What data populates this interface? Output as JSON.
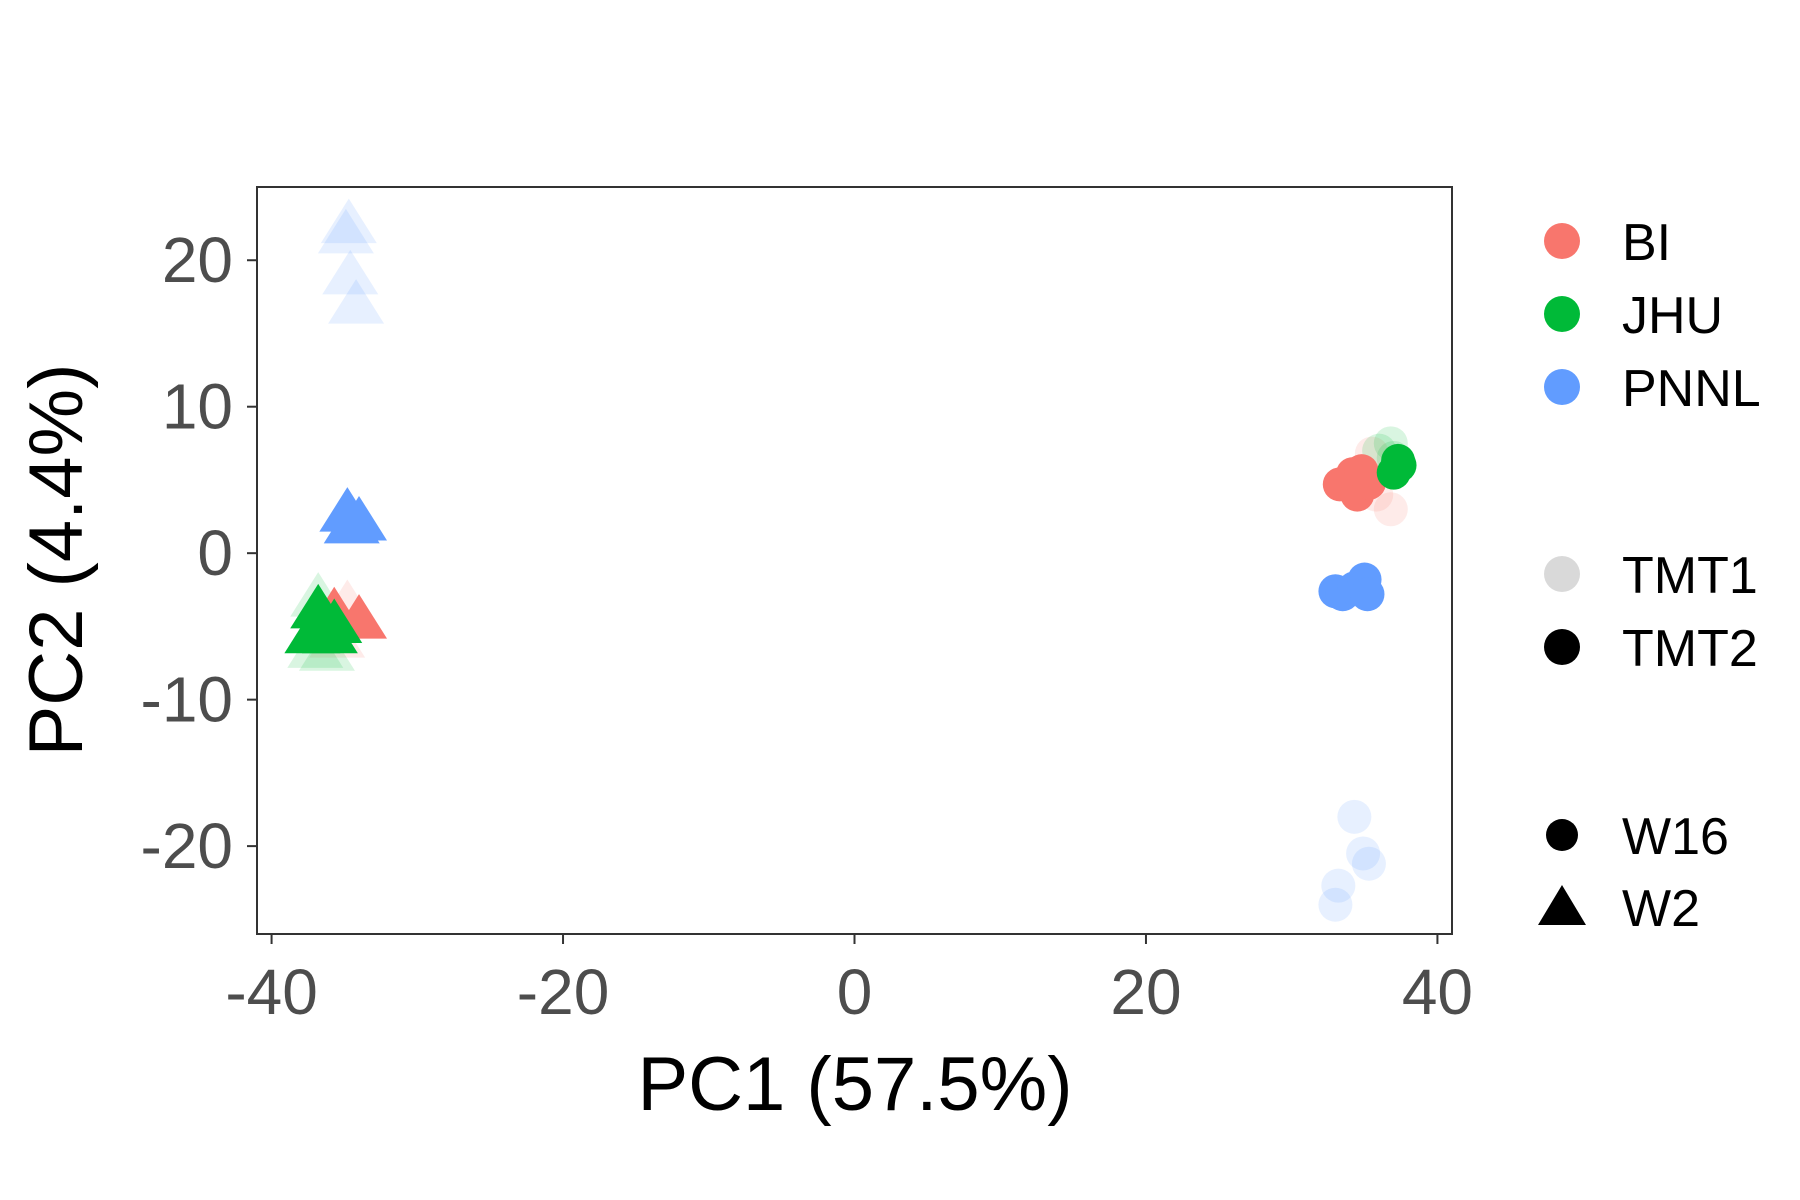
{
  "chart_data": {
    "type": "scatter",
    "xlabel": "PC1 (57.5%)",
    "ylabel": "PC2 (4.4%)",
    "xlim": [
      -41,
      41
    ],
    "ylim": [
      -26,
      25
    ],
    "xticks": [
      -40,
      -20,
      0,
      20,
      40
    ],
    "yticks": [
      -20,
      -10,
      0,
      10,
      20
    ],
    "grid": false,
    "legend_position": "right",
    "legend": {
      "site": [
        {
          "label": "BI",
          "color": "#F8766D"
        },
        {
          "label": "JHU",
          "color": "#00BA38"
        },
        {
          "label": "PNNL",
          "color": "#619CFF"
        }
      ],
      "batch": [
        {
          "label": "TMT1",
          "alpha": 0.15
        },
        {
          "label": "TMT2",
          "alpha": 1.0
        }
      ],
      "week": [
        {
          "label": "W16",
          "shape": "circle"
        },
        {
          "label": "W2",
          "shape": "triangle"
        }
      ]
    },
    "series": [
      {
        "site": "BI",
        "batch": "TMT1",
        "week": "W16",
        "color": "#F8766D",
        "alpha": 0.15,
        "points": [
          [
            35.5,
            6.8
          ],
          [
            36.8,
            3.0
          ],
          [
            34.5,
            5.2
          ],
          [
            35.8,
            4.0
          ]
        ]
      },
      {
        "site": "BI",
        "batch": "TMT2",
        "week": "W16",
        "color": "#F8766D",
        "alpha": 1.0,
        "points": [
          [
            33.3,
            4.7
          ],
          [
            34.2,
            5.4
          ],
          [
            34.5,
            4.0
          ],
          [
            35.3,
            4.8
          ],
          [
            34.8,
            5.6
          ]
        ]
      },
      {
        "site": "JHU",
        "batch": "TMT1",
        "week": "W16",
        "color": "#00BA38",
        "alpha": 0.15,
        "points": [
          [
            36.8,
            7.5
          ],
          [
            37.0,
            6.5
          ],
          [
            36.0,
            7.0
          ]
        ]
      },
      {
        "site": "JHU",
        "batch": "TMT2",
        "week": "W16",
        "color": "#00BA38",
        "alpha": 1.0,
        "points": [
          [
            37.0,
            5.5
          ],
          [
            37.3,
            6.3
          ],
          [
            37.4,
            6.0
          ]
        ]
      },
      {
        "site": "PNNL",
        "batch": "TMT1",
        "week": "W16",
        "color": "#619CFF",
        "alpha": 0.15,
        "points": [
          [
            34.3,
            -18.0
          ],
          [
            34.9,
            -20.5
          ],
          [
            35.3,
            -21.2
          ],
          [
            33.2,
            -22.7
          ],
          [
            33.0,
            -24.0
          ]
        ]
      },
      {
        "site": "PNNL",
        "batch": "TMT2",
        "week": "W16",
        "color": "#619CFF",
        "alpha": 1.0,
        "points": [
          [
            33.0,
            -2.6
          ],
          [
            33.5,
            -2.8
          ],
          [
            34.3,
            -2.4
          ],
          [
            35.0,
            -1.8
          ],
          [
            35.2,
            -2.8
          ]
        ]
      },
      {
        "site": "BI",
        "batch": "TMT1",
        "week": "W2",
        "color": "#F8766D",
        "alpha": 0.15,
        "points": [
          [
            -34.8,
            -3.5
          ],
          [
            -35.5,
            -5.8
          ]
        ]
      },
      {
        "site": "BI",
        "batch": "TMT2",
        "week": "W2",
        "color": "#F8766D",
        "alpha": 1.0,
        "points": [
          [
            -34.0,
            -4.5
          ],
          [
            -35.7,
            -4.0
          ]
        ]
      },
      {
        "site": "JHU",
        "batch": "TMT1",
        "week": "W2",
        "color": "#00BA38",
        "alpha": 0.15,
        "points": [
          [
            -37.0,
            -6.5
          ],
          [
            -36.2,
            -6.7
          ],
          [
            -36.8,
            -3.0
          ]
        ]
      },
      {
        "site": "JHU",
        "batch": "TMT2",
        "week": "W2",
        "color": "#00BA38",
        "alpha": 1.0,
        "points": [
          [
            -36.8,
            -3.8
          ],
          [
            -36.5,
            -5.0
          ],
          [
            -36.0,
            -5.5
          ],
          [
            -37.2,
            -5.5
          ],
          [
            -35.7,
            -4.8
          ]
        ]
      },
      {
        "site": "PNNL",
        "batch": "TMT1",
        "week": "W2",
        "color": "#619CFF",
        "alpha": 0.15,
        "points": [
          [
            -34.7,
            22.5
          ],
          [
            -34.9,
            21.8
          ],
          [
            -34.6,
            19.0
          ],
          [
            -34.2,
            17.0
          ]
        ]
      },
      {
        "site": "PNNL",
        "batch": "TMT2",
        "week": "W2",
        "color": "#619CFF",
        "alpha": 1.0,
        "points": [
          [
            -34.8,
            2.8
          ],
          [
            -34.0,
            2.2
          ],
          [
            -34.5,
            2.0
          ]
        ]
      }
    ]
  }
}
